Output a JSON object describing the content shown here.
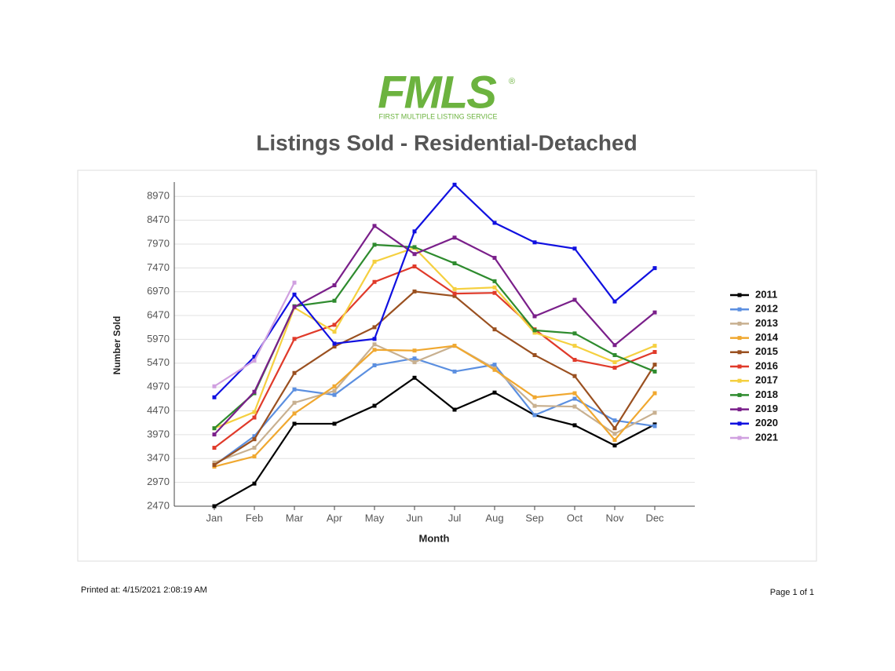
{
  "logo": {
    "name": "FMLS",
    "mark": "®",
    "tagline": "FIRST MULTIPLE LISTING SERVICE"
  },
  "footer": {
    "printed_at": "Printed at:  4/15/2021 2:08:19 AM",
    "page": "Page 1 of 1"
  },
  "chart_data": {
    "type": "line",
    "title": "Listings Sold - Residential-Detached",
    "x_label": "Month",
    "y_label": "Number Sold",
    "categories": [
      "Jan",
      "Feb",
      "Mar",
      "Apr",
      "May",
      "Jun",
      "Jul",
      "Aug",
      "Sep",
      "Oct",
      "Nov",
      "Dec"
    ],
    "ylim": [
      2470,
      9270
    ],
    "yticks": [
      2470,
      2970,
      3470,
      3970,
      4470,
      4970,
      5470,
      5970,
      6470,
      6970,
      7470,
      7970,
      8470,
      8970
    ],
    "grid": true,
    "legend": "right",
    "series": [
      {
        "name": "2011",
        "color": "#000000",
        "values": [
          2470,
          2944,
          4200,
          4200,
          4577,
          5165,
          4495,
          4854,
          4381,
          4168,
          3744,
          4185
        ]
      },
      {
        "name": "2012",
        "color": "#5b8fe0",
        "values": [
          3330,
          3940,
          4920,
          4805,
          5425,
          5570,
          5295,
          5440,
          4380,
          4725,
          4270,
          4150
        ]
      },
      {
        "name": "2013",
        "color": "#c8b090",
        "values": [
          3385,
          3695,
          4640,
          4890,
          5865,
          5490,
          5835,
          5360,
          4575,
          4560,
          3990,
          4430
        ]
      },
      {
        "name": "2014",
        "color": "#f0a830",
        "values": [
          3300,
          3515,
          4415,
          4985,
          5750,
          5735,
          5835,
          5330,
          4755,
          4840,
          3860,
          4840
        ]
      },
      {
        "name": "2015",
        "color": "#9a5020",
        "values": [
          3335,
          3875,
          5265,
          5820,
          6225,
          6975,
          6880,
          6180,
          5640,
          5200,
          4105,
          5440
        ]
      },
      {
        "name": "2016",
        "color": "#e03a2a",
        "values": [
          3695,
          4330,
          5980,
          6275,
          7175,
          7500,
          6930,
          6945,
          6180,
          5540,
          5375,
          5705
        ]
      },
      {
        "name": "2017",
        "color": "#f5d040",
        "values": [
          4105,
          4445,
          6635,
          6130,
          7600,
          7890,
          7025,
          7060,
          6110,
          5835,
          5490,
          5835
        ]
      },
      {
        "name": "2018",
        "color": "#2e8b2e",
        "values": [
          4105,
          4840,
          6665,
          6780,
          7955,
          7905,
          7565,
          7190,
          6160,
          6095,
          5640,
          5295
        ]
      },
      {
        "name": "2019",
        "color": "#7a1f8a",
        "values": [
          3975,
          4870,
          6650,
          7105,
          8350,
          7760,
          8105,
          7680,
          6455,
          6800,
          5850,
          6535
        ]
      },
      {
        "name": "2020",
        "color": "#1010e0",
        "values": [
          4755,
          5605,
          6910,
          5880,
          5980,
          8235,
          9215,
          8415,
          8005,
          7875,
          6765,
          7465
        ]
      },
      {
        "name": "2021",
        "color": "#d0a0e0",
        "values": [
          4985,
          5525,
          7160,
          null,
          null,
          null,
          null,
          null,
          null,
          null,
          null,
          null
        ]
      }
    ]
  }
}
